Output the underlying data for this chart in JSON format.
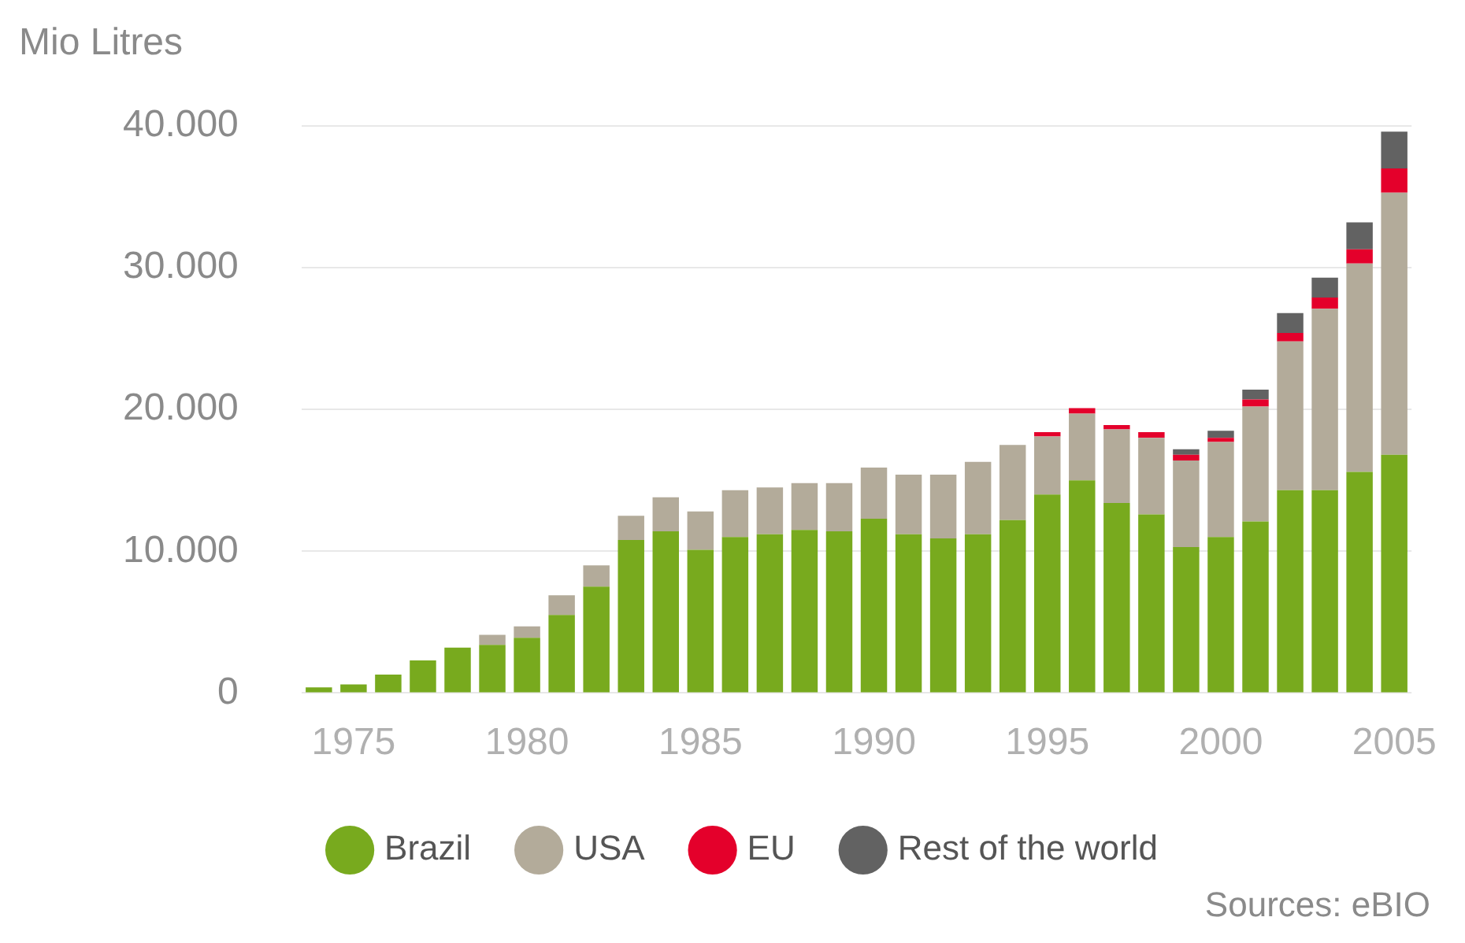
{
  "chart_data": {
    "type": "bar",
    "stacked": true,
    "ylabel": "Mio Litres",
    "categories": [
      null,
      "1975",
      null,
      null,
      null,
      null,
      "1980",
      null,
      null,
      null,
      null,
      "1985",
      null,
      null,
      null,
      null,
      "1990",
      null,
      null,
      null,
      null,
      "1995",
      null,
      null,
      null,
      null,
      "2000",
      null,
      null,
      null,
      null,
      "2005"
    ],
    "series": [
      {
        "name": "Brazil",
        "color": "#78aa1e",
        "values": [
          400,
          600,
          1300,
          2300,
          3200,
          3400,
          3900,
          5500,
          7500,
          10800,
          11400,
          10100,
          11000,
          11200,
          11500,
          11400,
          12300,
          11200,
          10900,
          11200,
          12200,
          14000,
          15000,
          13400,
          12600,
          10300,
          11000,
          12100,
          14300,
          14300,
          15600,
          16800
        ]
      },
      {
        "name": "USA",
        "color": "#b3ab9a",
        "values": [
          0,
          0,
          0,
          0,
          0,
          700,
          800,
          1400,
          1500,
          1700,
          2400,
          2700,
          3300,
          3300,
          3300,
          3400,
          3600,
          4200,
          4500,
          5100,
          5300,
          4100,
          4700,
          5200,
          5400,
          6100,
          6700,
          8100,
          10500,
          12800,
          14700,
          18500
        ]
      },
      {
        "name": "EU",
        "color": "#e4002b",
        "values": [
          0,
          0,
          0,
          0,
          0,
          0,
          0,
          0,
          0,
          0,
          0,
          0,
          0,
          0,
          0,
          0,
          0,
          0,
          0,
          0,
          0,
          300,
          400,
          300,
          400,
          400,
          300,
          500,
          600,
          800,
          1000,
          1700
        ]
      },
      {
        "name": "Rest of the world",
        "color": "#626262",
        "values": [
          0,
          0,
          0,
          0,
          0,
          0,
          0,
          0,
          0,
          0,
          0,
          0,
          0,
          0,
          0,
          0,
          0,
          0,
          0,
          0,
          0,
          0,
          0,
          0,
          0,
          400,
          500,
          700,
          1400,
          1400,
          1900,
          2600
        ]
      }
    ],
    "ylim": [
      0,
      40000
    ],
    "yticks": [
      0,
      {
        "value": 10000,
        "label": "10.000"
      },
      {
        "value": 20000,
        "label": "20.000"
      },
      {
        "value": 30000,
        "label": "30.000"
      },
      {
        "value": 40000,
        "label": "40.000"
      }
    ],
    "grid": "y",
    "legend": "bottom",
    "annotations": [
      "Sources: eBIO"
    ]
  }
}
